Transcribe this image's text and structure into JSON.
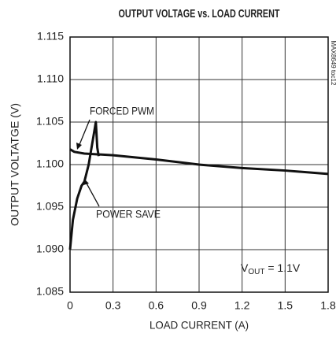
{
  "chart_data": {
    "type": "line",
    "title": "OUTPUT VOLTAGE vs. LOAD CURRENT",
    "xlabel": "LOAD CURRENT (A)",
    "ylabel": "OUTPUT VOLTATGE (V)",
    "side_label": "MAX8649 toc12",
    "annotations": [
      "FORCED PWM",
      "POWER SAVE"
    ],
    "vout_label": [
      "V",
      "OUT",
      " = 1.1V"
    ],
    "xlim": [
      0,
      1.8
    ],
    "xticks": [
      0,
      0.3,
      0.6,
      0.9,
      1.2,
      1.5,
      1.8
    ],
    "ylim": [
      1.085,
      1.115
    ],
    "yticks": [
      1.085,
      {
        "value": 1.09,
        "label": "1.090"
      },
      1.095,
      {
        "value": 1.1,
        "label": "1.100"
      },
      1.105,
      {
        "value": 1.11,
        "label": "1.110"
      },
      1.115
    ],
    "grid": true,
    "series": [
      {
        "name": "FORCED PWM",
        "color": "#111111",
        "x": [
          0,
          0.03,
          0.1,
          0.3,
          0.6,
          0.9,
          1.2,
          1.5,
          1.8
        ],
        "values": [
          1.1018,
          1.1015,
          1.1013,
          1.1011,
          1.1006,
          1.1,
          1.0996,
          1.0993,
          1.0989
        ]
      },
      {
        "name": "POWER SAVE",
        "color": "#111111",
        "x": [
          0,
          0.02,
          0.05,
          0.08,
          0.1,
          0.13,
          0.16,
          0.18,
          0.19,
          0.2
        ],
        "values": [
          1.09,
          1.0935,
          1.096,
          1.0975,
          1.098,
          1.1,
          1.103,
          1.105,
          1.102,
          1.101
        ]
      }
    ]
  }
}
